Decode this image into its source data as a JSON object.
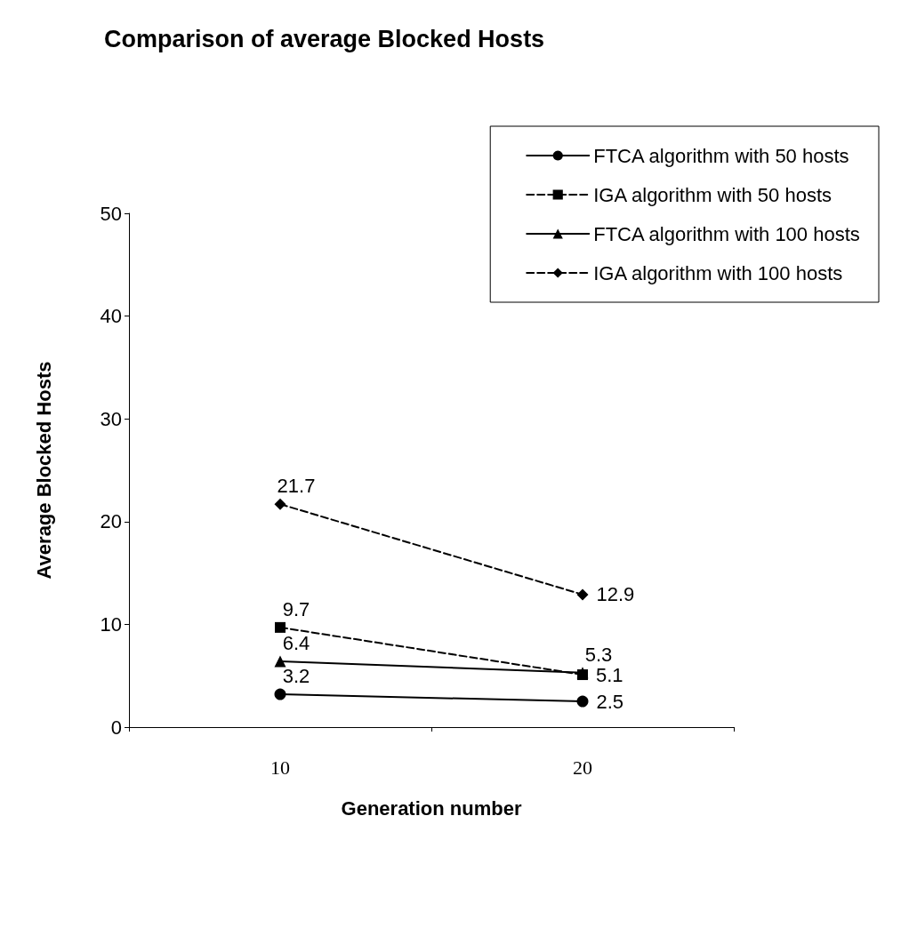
{
  "chart_data": {
    "type": "line",
    "title": "Comparison of average Blocked Hosts",
    "xlabel": "Generation number",
    "ylabel": "Average Blocked Hosts",
    "categories": [
      "10",
      "20"
    ],
    "series": [
      {
        "name": "FTCA algorithm with 50 hosts",
        "color": "#000000",
        "values": [
          3.2,
          2.5
        ],
        "marker": "circle",
        "line_style": "solid"
      },
      {
        "name": "IGA algorithm with 50 hosts",
        "color": "#000000",
        "values": [
          9.7,
          5.1
        ],
        "marker": "square",
        "line_style": "dashed"
      },
      {
        "name": "FTCA algorithm with 100 hosts",
        "color": "#000000",
        "values": [
          6.4,
          5.3
        ],
        "marker": "triangle",
        "line_style": "solid"
      },
      {
        "name": "IGA algorithm with 100 hosts",
        "color": "#000000",
        "values": [
          21.7,
          12.9
        ],
        "marker": "diamond",
        "line_style": "dashed"
      }
    ],
    "ylim": [
      0,
      50
    ],
    "yticks": [
      0,
      10,
      20,
      30,
      40,
      50
    ],
    "grid": false,
    "legend": "top right",
    "data_labels": true
  }
}
